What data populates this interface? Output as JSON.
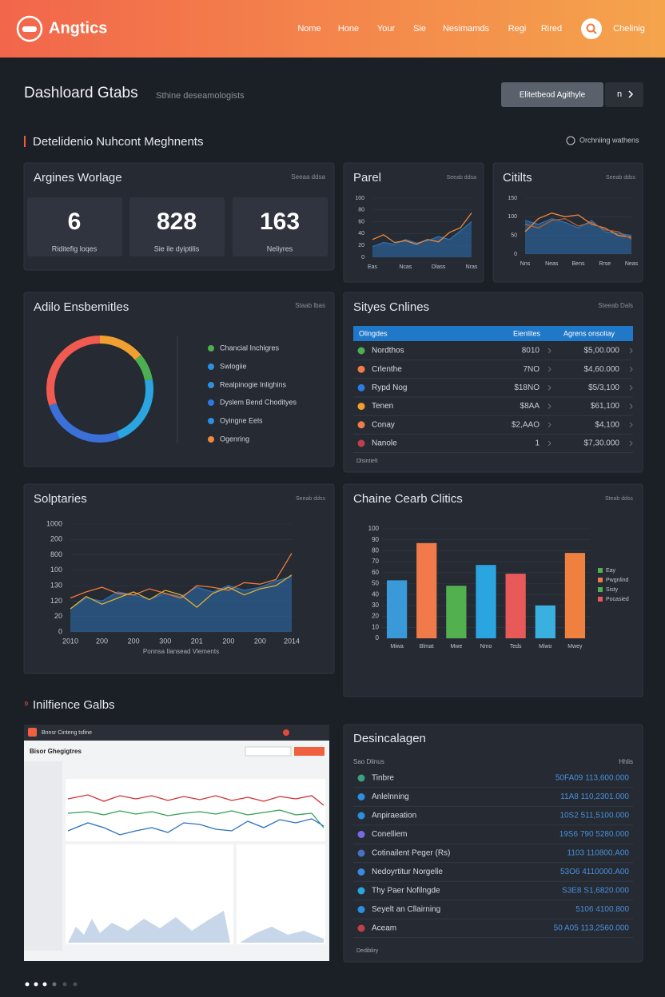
{
  "header": {
    "logo": "Angtics",
    "nav": [
      "Nome",
      "Hone",
      "Your",
      "Sie",
      "Nesimamds",
      "Regi",
      "Rired"
    ],
    "account": "Chelinig"
  },
  "page": {
    "title": "Dashloard Gtabs",
    "subtitle": "Sthine deseamologists",
    "primary_button": "Elitetbeod Agithyle",
    "secondary_button": "n"
  },
  "section1": {
    "title": "Detelidenio Nuhcont Meghnents",
    "action": "Orchniing wathens"
  },
  "overview": {
    "title": "Argines Worlage",
    "meta": "Seeaa ddsa",
    "stats": [
      {
        "value": 6,
        "label": "Riditefig loqes"
      },
      {
        "value": 828,
        "label": "Sie ile dyiptilis"
      },
      {
        "value": 163,
        "label": "Neliyres"
      }
    ]
  },
  "donut_card": {
    "title": "Adilo Ensbemitles",
    "meta": "Staab lbas",
    "legend": [
      {
        "name": "Chancial Inchigres",
        "color": "#4caf50"
      },
      {
        "name": "Swlogiie",
        "color": "#2d8fe0"
      },
      {
        "name": "Realpinogie Inlighins",
        "color": "#2d8fe0"
      },
      {
        "name": "Dyslem Bend Chodityes",
        "color": "#2d7ae0"
      },
      {
        "name": "Oyingne Eels",
        "color": "#2d8fe0"
      },
      {
        "name": "Ogenring",
        "color": "#f08a3a"
      }
    ]
  },
  "table": {
    "title": "Sityes Cnlines",
    "meta": "Steeab Dals",
    "columns": [
      "Olingdes",
      "Eienlites",
      "Agrens onsoliay"
    ],
    "rows": [
      [
        "Nordthos",
        "8010",
        "$5,00.000"
      ],
      [
        "Crlenthe",
        "7NO",
        "$4,60.000"
      ],
      [
        "Rypd Nog",
        "$18NO",
        "$5/3,100"
      ],
      [
        "Tenen",
        "$8AA",
        "$61,100"
      ],
      [
        "Conay",
        "$2,AAO",
        "$4,100"
      ],
      [
        "Nanole",
        "1",
        "$7,30.000"
      ]
    ],
    "row_colors": [
      "#4caf50",
      "#f07a4a",
      "#2d7ae0",
      "#f0a030",
      "#f07a4a",
      "#c0404a"
    ],
    "footer": "Dlsintielt"
  },
  "section2": {
    "title": "Inilfience Galbs"
  },
  "preview": {
    "window_title": "Bnnsr Cinteng tsfine",
    "app_title": "Bisor Ghegigtres"
  },
  "list": {
    "title": "Desincalagen",
    "header_left": "Sao Dlinus",
    "header_right": "Hhlis",
    "rows": [
      {
        "name": "Tinbre",
        "value": "50FA09 113,600.000",
        "color": "#3aa080"
      },
      {
        "name": "Anlelnning",
        "value": "11A8 110,2301.000",
        "color": "#2d8fe0"
      },
      {
        "name": "Anpiraeation",
        "value": "10S2 511,5100.000",
        "color": "#2d8fe0"
      },
      {
        "name": "Conelliem",
        "value": "19S6 790 5280.000",
        "color": "#7a6ae0"
      },
      {
        "name": "Cotinailent Peger (Rs)",
        "value": "1103 110800.A00",
        "color": "#4a70c0"
      },
      {
        "name": "Nedoyrtitur Norgelle",
        "value": "53O6 4110000.A00",
        "color": "#3a8ae0"
      },
      {
        "name": "Thy Paer Nofilngde",
        "value": "S3E8 S1,6820.000",
        "color": "#2aa5e0"
      },
      {
        "name": "Seyelt an Cllairning",
        "value": "5106 4100.800",
        "color": "#2d8fe0"
      },
      {
        "name": "Aceam",
        "value": "50 A05 113,2560.000",
        "color": "#c0404a"
      }
    ],
    "footer": "Dedibliry"
  },
  "chart_data": [
    {
      "type": "line",
      "title": "Parel",
      "meta": "Seeab ddsa",
      "categories": [
        "Eas",
        null,
        null,
        "Ncas",
        null,
        null,
        "Dlass",
        null,
        null,
        "Nras"
      ],
      "ylim": [
        0,
        100
      ],
      "yticks": [
        0,
        20,
        40,
        60,
        80,
        100
      ],
      "series": [
        {
          "color": "#2e6fb0",
          "area": true,
          "values": [
            18,
            25,
            22,
            30,
            24,
            28,
            35,
            30,
            45,
            60
          ]
        },
        {
          "color": "#f08a3a",
          "values": [
            30,
            38,
            25,
            28,
            22,
            30,
            26,
            42,
            50,
            75
          ]
        }
      ]
    },
    {
      "type": "line",
      "title": "Citilts",
      "meta": "Seeab ddss",
      "categories": [
        "Nns",
        null,
        "Neas",
        null,
        "Bens",
        null,
        "Rrse",
        null,
        "Neas"
      ],
      "ylim": [
        0,
        150
      ],
      "yticks": [
        0,
        50,
        100,
        150
      ],
      "series": [
        {
          "color": "#2e6fb0",
          "area": true,
          "values": [
            90,
            80,
            95,
            85,
            70,
            90,
            60,
            55,
            50
          ]
        },
        {
          "color": "#f08a3a",
          "values": [
            60,
            95,
            110,
            100,
            105,
            80,
            70,
            50,
            45
          ]
        },
        {
          "color": "#b0603a",
          "values": [
            80,
            70,
            90,
            95,
            75,
            85,
            65,
            60,
            40
          ]
        }
      ]
    },
    {
      "type": "line",
      "title": "Solptaries",
      "meta": "Seeab ddss",
      "categories": [
        "2010",
        null,
        "200",
        null,
        "200",
        null,
        "300",
        null,
        "201",
        null,
        "200",
        null,
        "200",
        null,
        "2014"
      ],
      "xlabel": "Ponnsa Ilansead Vlements",
      "ylim": [
        0,
        7
      ],
      "yticks": [
        0,
        {
          "value": 1,
          "label": "20"
        },
        {
          "value": 2,
          "label": "120"
        },
        {
          "value": 3,
          "label": "130"
        },
        {
          "value": 4,
          "label": "100"
        },
        {
          "value": 5,
          "label": "800"
        },
        {
          "value": 6,
          "label": "200"
        },
        {
          "value": 7,
          "label": "1000"
        }
      ],
      "series": [
        {
          "color": "#2e6fb0",
          "area": true,
          "values": [
            1.5,
            2.2,
            2.0,
            2.6,
            2.4,
            2.1,
            2.5,
            2.3,
            2.9,
            2.6,
            3.0,
            2.7,
            2.9,
            3.3,
            3.6
          ]
        },
        {
          "color": "#f07a3a",
          "values": [
            2.2,
            2.6,
            2.9,
            2.5,
            2.4,
            2.8,
            2.5,
            2.2,
            3.0,
            2.9,
            2.7,
            3.2,
            3.1,
            3.4,
            5.1
          ]
        },
        {
          "color": "#e0b030",
          "values": [
            1.5,
            2.3,
            1.8,
            2.2,
            2.6,
            2.1,
            2.7,
            2.4,
            1.6,
            2.5,
            2.9,
            2.4,
            2.8,
            3.0,
            3.7
          ]
        }
      ]
    },
    {
      "type": "bar",
      "title": "Chaine Cearb Clitics",
      "meta": "Steab ddss",
      "categories": [
        "Miwa",
        "Blmat",
        "Mwe",
        "Nmo",
        "Teds",
        "Miwo",
        "Mwey"
      ],
      "values": [
        53,
        87,
        48,
        67,
        59,
        30,
        78
      ],
      "colors": [
        "#3a9ad9",
        "#f07a4a",
        "#52b04f",
        "#2aa5e0",
        "#e85a5a",
        "#3ab0e0",
        "#f08040"
      ],
      "ylim": [
        0,
        100
      ],
      "yticks": [
        0,
        10,
        20,
        30,
        40,
        50,
        60,
        70,
        80,
        90,
        100
      ],
      "legend": [
        {
          "name": "Eay",
          "color": "#52b04f"
        },
        {
          "name": "Pwgnlind",
          "color": "#f07a4a"
        },
        {
          "name": "Sisty",
          "color": "#52b04f"
        },
        {
          "name": "Pocasied",
          "color": "#e85a5a"
        }
      ]
    },
    {
      "type": "pie",
      "values": [
        14,
        8,
        22,
        26,
        30
      ],
      "colors": [
        "#f0a030",
        "#4caf50",
        "#2aa5e0",
        "#3a70d8",
        "#f05a50"
      ]
    }
  ]
}
